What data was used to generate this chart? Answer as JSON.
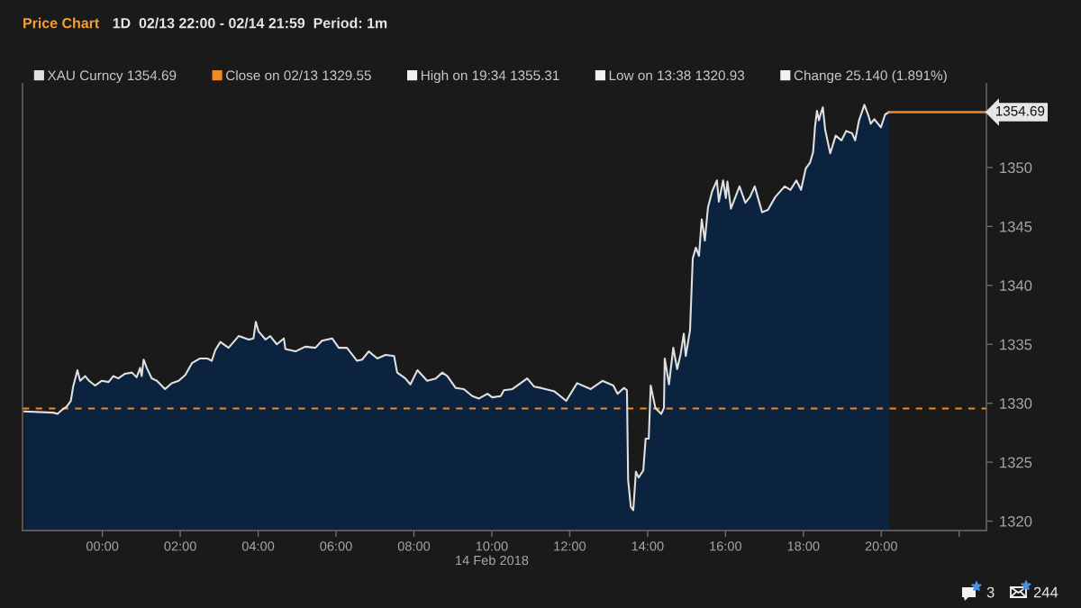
{
  "chart_data": {
    "type": "area",
    "title": "Price Chart",
    "subtitle": "1D  02/13 22:00 - 02/14 21:59  Period: 1m",
    "x": [
      -2.0,
      -1.26,
      -1.15,
      -1.05,
      -0.92,
      -0.81,
      -0.75,
      -0.64,
      -0.57,
      -0.44,
      -0.34,
      -0.19,
      -0.02,
      0.16,
      0.28,
      0.41,
      0.58,
      0.76,
      0.88,
      0.97,
      1.01,
      1.06,
      1.14,
      1.27,
      1.4,
      1.61,
      1.78,
      1.96,
      2.13,
      2.3,
      2.51,
      2.69,
      2.81,
      2.9,
      3.03,
      3.24,
      3.5,
      3.76,
      3.88,
      3.94,
      4.01,
      4.19,
      4.31,
      4.48,
      4.66,
      4.7,
      4.96,
      5.21,
      5.47,
      5.64,
      5.9,
      6.07,
      6.28,
      6.54,
      6.67,
      6.84,
      7.06,
      7.27,
      7.49,
      7.57,
      7.78,
      7.91,
      8.09,
      8.34,
      8.56,
      8.73,
      8.86,
      9.07,
      9.28,
      9.5,
      9.67,
      9.89,
      10.01,
      10.23,
      10.31,
      10.53,
      10.74,
      10.91,
      11.09,
      11.26,
      11.61,
      11.91,
      12.19,
      12.54,
      12.84,
      13.12,
      13.23,
      13.39,
      13.47,
      13.5,
      13.57,
      13.633,
      13.7,
      13.77,
      13.89,
      13.95,
      14.03,
      14.08,
      14.2,
      14.35,
      14.42,
      14.44,
      14.55,
      14.66,
      14.76,
      14.85,
      14.93,
      14.98,
      15.09,
      15.16,
      15.24,
      15.32,
      15.39,
      15.47,
      15.55,
      15.66,
      15.78,
      15.83,
      15.94,
      16.01,
      16.05,
      16.14,
      16.36,
      16.51,
      16.63,
      16.75,
      16.94,
      17.09,
      17.28,
      17.52,
      17.67,
      17.82,
      17.94,
      18.06,
      18.17,
      18.25,
      18.3,
      18.35,
      18.4,
      18.44,
      18.5,
      18.56,
      18.69,
      18.83,
      18.98,
      19.1,
      19.25,
      19.33,
      19.43,
      19.567,
      19.67,
      19.73,
      19.82,
      19.99,
      20.1,
      20.2
    ],
    "series": [
      {
        "name": "XAU Curncy 1354.69",
        "color": "#e0e0e0",
        "values": [
          1329.3,
          1329.2,
          1329.1,
          1329.4,
          1329.7,
          1330.2,
          1331.4,
          1332.8,
          1331.9,
          1332.3,
          1331.9,
          1331.5,
          1331.9,
          1331.8,
          1332.3,
          1332.1,
          1332.5,
          1332.6,
          1332.2,
          1333.0,
          1332.3,
          1333.7,
          1333.0,
          1332.1,
          1331.9,
          1331.2,
          1331.7,
          1331.9,
          1332.4,
          1333.4,
          1333.8,
          1333.8,
          1333.6,
          1334.5,
          1335.2,
          1334.7,
          1335.7,
          1335.4,
          1335.5,
          1336.9,
          1336.1,
          1335.4,
          1335.7,
          1335.0,
          1335.5,
          1334.6,
          1334.4,
          1334.8,
          1334.7,
          1335.3,
          1335.5,
          1334.7,
          1334.7,
          1333.6,
          1333.7,
          1334.4,
          1333.8,
          1334.1,
          1334.0,
          1332.6,
          1332.1,
          1331.6,
          1332.8,
          1331.9,
          1332.1,
          1332.6,
          1332.3,
          1331.3,
          1331.2,
          1330.6,
          1330.4,
          1330.8,
          1330.5,
          1330.6,
          1331.1,
          1331.2,
          1331.7,
          1332.1,
          1331.4,
          1331.3,
          1331.0,
          1330.2,
          1331.7,
          1331.2,
          1331.9,
          1331.5,
          1330.8,
          1331.3,
          1331.1,
          1323.5,
          1321.2,
          1320.93,
          1324.2,
          1323.7,
          1324.3,
          1327.0,
          1327.0,
          1331.5,
          1329.6,
          1329.1,
          1329.6,
          1333.8,
          1331.6,
          1334.7,
          1332.9,
          1334.2,
          1335.9,
          1334.0,
          1336.2,
          1342.3,
          1343.2,
          1342.5,
          1345.6,
          1343.8,
          1346.6,
          1348.0,
          1348.9,
          1347.1,
          1348.9,
          1347.4,
          1348.8,
          1346.5,
          1348.4,
          1347.0,
          1347.5,
          1348.4,
          1346.2,
          1346.4,
          1347.5,
          1348.4,
          1348.1,
          1348.9,
          1348.1,
          1349.9,
          1350.4,
          1351.3,
          1353.5,
          1354.8,
          1354.0,
          1354.5,
          1355.1,
          1353.2,
          1351.2,
          1352.7,
          1352.3,
          1353.1,
          1352.9,
          1352.3,
          1354.0,
          1355.31,
          1354.4,
          1353.7,
          1354.1,
          1353.4,
          1354.5,
          1354.69
        ]
      },
      {
        "type": "line",
        "color": "#f08a24",
        "x": [
          20.2,
          22.7
        ],
        "values": [
          1354.69,
          1354.69
        ],
        "value_labels": [
          null,
          "1354.69"
        ]
      }
    ],
    "xlim": [
      -2.05,
      22.7
    ],
    "xticks": [
      {
        "value": 0,
        "label": "00:00"
      },
      {
        "value": 2,
        "label": "02:00"
      },
      {
        "value": 4,
        "label": "04:00"
      },
      {
        "value": 6,
        "label": "06:00"
      },
      {
        "value": 8,
        "label": "08:00"
      },
      {
        "value": 10,
        "label": "10:00\n14 Feb 2018"
      },
      {
        "value": 12,
        "label": "12:00"
      },
      {
        "value": 14,
        "label": "14:00"
      },
      {
        "value": 16,
        "label": "16:00"
      },
      {
        "value": 18,
        "label": "18:00"
      },
      {
        "value": 20,
        "label": "20:00"
      },
      {
        "value": 22,
        "label": null
      }
    ],
    "ylim": [
      1319.2,
      1357.1
    ],
    "yticks": [
      1320,
      1325,
      1330,
      1335,
      1340,
      1345,
      1350
    ],
    "ref_lines": [
      {
        "axis": "y",
        "value": 1329.55,
        "label": "Close on 02/13 1329.55",
        "color": "#f08a24",
        "line_style": "dashed"
      }
    ],
    "annotations": [
      "High on 19:34 1355.31",
      "Low on 13:38 1320.93",
      "Change 25.140 (1.891%)",
      "3",
      "244"
    ],
    "legend": "top",
    "grid": false
  }
}
